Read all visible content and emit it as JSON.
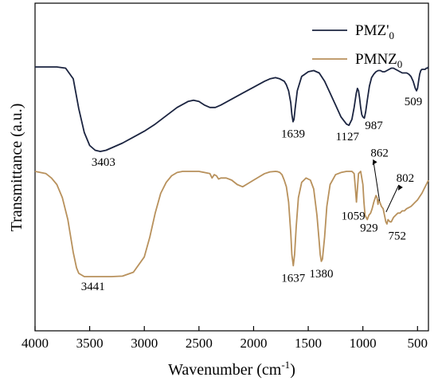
{
  "chart_data": {
    "type": "line",
    "title": "",
    "xlabel": "Wavenumber (cm",
    "xlabel_sup": "-1",
    "xlabel_tail": ")",
    "ylabel": "Transmittance (a.u.)",
    "xlim": [
      4000,
      400
    ],
    "x_reversed": true,
    "x_ticks": [
      4000,
      3500,
      3000,
      2500,
      2000,
      1500,
      1000,
      500
    ],
    "y_ticks_shown": false,
    "grid": false,
    "legend_position": "top-right",
    "series": [
      {
        "name": "PMZ'",
        "name_sub": "0",
        "color": "#1b2440",
        "x": [
          4000,
          3800,
          3720,
          3650,
          3600,
          3550,
          3500,
          3450,
          3403,
          3350,
          3300,
          3200,
          3100,
          3000,
          2900,
          2800,
          2700,
          2600,
          2550,
          2500,
          2450,
          2400,
          2350,
          2300,
          2200,
          2100,
          2000,
          1900,
          1850,
          1800,
          1760,
          1720,
          1700,
          1680,
          1660,
          1650,
          1639,
          1630,
          1620,
          1600,
          1560,
          1500,
          1450,
          1400,
          1350,
          1300,
          1250,
          1200,
          1150,
          1127,
          1100,
          1080,
          1060,
          1050,
          1040,
          1030,
          1020,
          1010,
          1000,
          987,
          975,
          960,
          940,
          920,
          900,
          880,
          860,
          840,
          820,
          800,
          780,
          760,
          740,
          720,
          700,
          680,
          660,
          640,
          620,
          600,
          580,
          560,
          540,
          520,
          509,
          500,
          490,
          480,
          470,
          460,
          450,
          440,
          430,
          420,
          410,
          400
        ],
        "y": [
          0.9,
          0.9,
          0.89,
          0.8,
          0.55,
          0.35,
          0.24,
          0.2,
          0.19,
          0.2,
          0.22,
          0.26,
          0.31,
          0.36,
          0.42,
          0.49,
          0.56,
          0.61,
          0.62,
          0.61,
          0.58,
          0.56,
          0.56,
          0.58,
          0.63,
          0.68,
          0.73,
          0.78,
          0.8,
          0.81,
          0.8,
          0.78,
          0.75,
          0.7,
          0.6,
          0.5,
          0.44,
          0.46,
          0.55,
          0.7,
          0.82,
          0.86,
          0.87,
          0.85,
          0.78,
          0.68,
          0.58,
          0.48,
          0.42,
          0.41,
          0.46,
          0.56,
          0.68,
          0.72,
          0.7,
          0.64,
          0.56,
          0.5,
          0.48,
          0.47,
          0.52,
          0.62,
          0.74,
          0.81,
          0.84,
          0.86,
          0.87,
          0.87,
          0.86,
          0.86,
          0.87,
          0.88,
          0.89,
          0.89,
          0.88,
          0.87,
          0.86,
          0.85,
          0.85,
          0.85,
          0.84,
          0.82,
          0.78,
          0.72,
          0.7,
          0.72,
          0.78,
          0.84,
          0.87,
          0.88,
          0.88,
          0.88,
          0.88,
          0.89,
          0.89,
          0.9
        ]
      },
      {
        "name": "PMNZ",
        "name_sub": "0",
        "color": "#b8915c",
        "x": [
          4000,
          3900,
          3850,
          3800,
          3750,
          3700,
          3680,
          3650,
          3620,
          3600,
          3550,
          3500,
          3441,
          3400,
          3300,
          3200,
          3100,
          3000,
          2950,
          2900,
          2850,
          2800,
          2750,
          2700,
          2650,
          2600,
          2500,
          2400,
          2380,
          2360,
          2340,
          2320,
          2300,
          2250,
          2200,
          2150,
          2100,
          2050,
          2000,
          1950,
          1900,
          1850,
          1800,
          1780,
          1760,
          1740,
          1720,
          1700,
          1680,
          1660,
          1650,
          1637,
          1625,
          1610,
          1590,
          1560,
          1520,
          1480,
          1450,
          1420,
          1400,
          1390,
          1380,
          1370,
          1350,
          1330,
          1300,
          1250,
          1200,
          1150,
          1100,
          1080,
          1070,
          1059,
          1050,
          1040,
          1020,
          1000,
          990,
          980,
          960,
          945,
          929,
          915,
          900,
          880,
          870,
          862,
          855,
          845,
          830,
          815,
          802,
          790,
          780,
          770,
          752,
          740,
          720,
          700,
          680,
          660,
          640,
          620,
          600,
          580,
          560,
          540,
          520,
          500,
          480,
          460,
          440,
          420,
          400
        ],
        "y": [
          0.5,
          0.49,
          0.47,
          0.44,
          0.38,
          0.28,
          0.22,
          0.13,
          0.06,
          0.035,
          0.02,
          0.02,
          0.02,
          0.02,
          0.02,
          0.022,
          0.04,
          0.11,
          0.2,
          0.31,
          0.4,
          0.45,
          0.48,
          0.495,
          0.5,
          0.5,
          0.5,
          0.49,
          0.47,
          0.485,
          0.48,
          0.465,
          0.47,
          0.47,
          0.46,
          0.44,
          0.43,
          0.445,
          0.46,
          0.475,
          0.49,
          0.498,
          0.5,
          0.499,
          0.495,
          0.485,
          0.46,
          0.43,
          0.36,
          0.22,
          0.12,
          0.07,
          0.12,
          0.25,
          0.38,
          0.45,
          0.47,
          0.46,
          0.42,
          0.3,
          0.18,
          0.12,
          0.09,
          0.1,
          0.2,
          0.34,
          0.44,
          0.485,
          0.495,
          0.5,
          0.5,
          0.49,
          0.43,
          0.36,
          0.42,
          0.49,
          0.5,
          0.44,
          0.36,
          0.3,
          0.28,
          0.3,
          0.31,
          0.33,
          0.36,
          0.39,
          0.38,
          0.35,
          0.37,
          0.36,
          0.34,
          0.33,
          0.3,
          0.27,
          0.26,
          0.28,
          0.27,
          0.27,
          0.29,
          0.3,
          0.31,
          0.31,
          0.32,
          0.32,
          0.33,
          0.335,
          0.34,
          0.35,
          0.36,
          0.37,
          0.385,
          0.4,
          0.42,
          0.44,
          0.46
        ]
      }
    ],
    "annotations": [
      {
        "text": "3403",
        "series": 0,
        "x": 3403
      },
      {
        "text": "1639",
        "series": 0,
        "x": 1639
      },
      {
        "text": "1127",
        "series": 0,
        "x": 1127
      },
      {
        "text": "987",
        "series": 0,
        "x": 987
      },
      {
        "text": "509",
        "series": 0,
        "x": 509
      },
      {
        "text": "3441",
        "series": 1,
        "x": 3441
      },
      {
        "text": "1637",
        "series": 1,
        "x": 1637
      },
      {
        "text": "1380",
        "series": 1,
        "x": 1380
      },
      {
        "text": "1059",
        "series": 1,
        "x": 1059
      },
      {
        "text": "929",
        "series": 1,
        "x": 929
      },
      {
        "text": "862",
        "series": 1,
        "x": 862
      },
      {
        "text": "802",
        "series": 1,
        "x": 802
      },
      {
        "text": "752",
        "series": 1,
        "x": 752
      }
    ]
  }
}
